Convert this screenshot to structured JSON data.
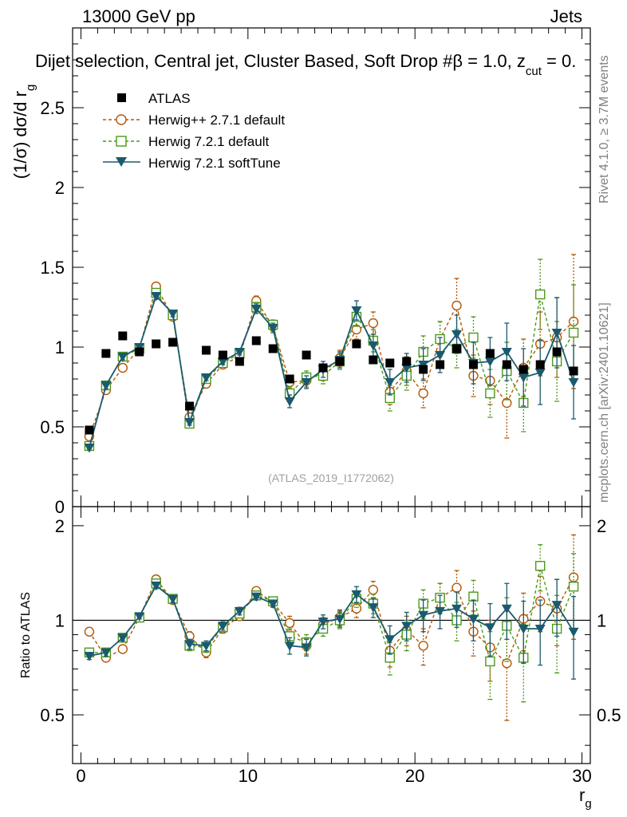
{
  "header": {
    "left": "13000 GeV pp",
    "right": "Jets",
    "selection": "Dijet selection, Central jet, Cluster Based, Soft Drop #β = 1.0, z",
    "selection_sub": "cut",
    "selection_tail": " = 0.",
    "analysis_tag": "(ATLAS_2019_I1772062)",
    "rivet": "Rivet 4.1.0, ≥ 3.7M events",
    "mcplots": "mcplots.cern.ch [arXiv:2401.10621]"
  },
  "colors": {
    "atlas": "#000000",
    "herwigpp": "#b35806",
    "herwig721": "#4a9a1a",
    "softtune": "#1b5a6e"
  },
  "chart_data": [
    {
      "type": "scatter",
      "panel": "main",
      "ylabel_main": "(1/σ) dσ/d r",
      "ylabel_sub": "g",
      "xlim": [
        -0.5,
        30.5
      ],
      "ylim": [
        0,
        3.0
      ],
      "yticks": [
        0,
        0.5,
        1,
        1.5,
        2,
        2.5
      ],
      "ytick_labels": [
        "0",
        "0.5",
        "1",
        "1.5",
        "2",
        "2.5"
      ],
      "legend": [
        "ATLAS",
        "Herwig++ 2.7.1 default",
        "Herwig 7.2.1 default",
        "Herwig 7.2.1 softTune"
      ],
      "x": [
        0.5,
        1.5,
        2.5,
        3.5,
        4.5,
        5.5,
        6.5,
        7.5,
        8.5,
        9.5,
        10.5,
        11.5,
        12.5,
        13.5,
        14.5,
        15.5,
        16.5,
        17.5,
        18.5,
        19.5,
        20.5,
        21.5,
        22.5,
        23.5,
        24.5,
        25.5,
        26.5,
        27.5,
        28.5,
        29.5
      ],
      "series": [
        {
          "name": "ATLAS",
          "values": [
            0.48,
            0.96,
            1.07,
            0.97,
            1.02,
            1.03,
            0.63,
            0.98,
            0.95,
            0.91,
            1.04,
            0.99,
            0.8,
            0.95,
            0.87,
            0.91,
            1.02,
            0.92,
            0.9,
            0.91,
            0.86,
            0.89,
            0.99,
            0.89,
            0.96,
            0.89,
            0.86,
            0.89,
            0.97,
            0.85
          ],
          "errors": [
            0.01,
            0.01,
            0.01,
            0.01,
            0.01,
            0.01,
            0.01,
            0.01,
            0.01,
            0.01,
            0.01,
            0.01,
            0.01,
            0.01,
            0.01,
            0.01,
            0.01,
            0.01,
            0.01,
            0.02,
            0.02,
            0.02,
            0.02,
            0.02,
            0.02,
            0.02,
            0.02,
            0.02,
            0.02,
            0.02
          ]
        },
        {
          "name": "Herwig++ 2.7.1 default",
          "values": [
            0.44,
            0.73,
            0.87,
            0.99,
            1.38,
            1.19,
            0.56,
            0.77,
            0.89,
            0.94,
            1.29,
            1.13,
            0.78,
            0.79,
            0.84,
            0.93,
            1.11,
            1.15,
            0.72,
            0.85,
            0.71,
            1.05,
            1.26,
            0.82,
            0.79,
            0.65,
            0.87,
            1.02,
            1.06,
            1.16
          ],
          "errors": [
            0.01,
            0.02,
            0.02,
            0.02,
            0.02,
            0.02,
            0.02,
            0.02,
            0.02,
            0.02,
            0.03,
            0.03,
            0.04,
            0.04,
            0.05,
            0.05,
            0.06,
            0.07,
            0.08,
            0.09,
            0.09,
            0.11,
            0.17,
            0.13,
            0.15,
            0.22,
            0.18,
            0.2,
            0.25,
            0.42
          ]
        },
        {
          "name": "Herwig 7.2.1 default",
          "values": [
            0.38,
            0.76,
            0.94,
            0.99,
            1.34,
            1.2,
            0.52,
            0.8,
            0.9,
            0.96,
            1.25,
            1.14,
            0.71,
            0.81,
            0.82,
            0.91,
            1.19,
            1.04,
            0.68,
            0.82,
            0.97,
            1.05,
            0.99,
            1.06,
            0.71,
            0.85,
            0.65,
            1.33,
            0.91,
            1.09
          ],
          "errors": [
            0.01,
            0.02,
            0.02,
            0.02,
            0.02,
            0.02,
            0.02,
            0.02,
            0.02,
            0.02,
            0.03,
            0.03,
            0.04,
            0.04,
            0.05,
            0.05,
            0.06,
            0.07,
            0.08,
            0.09,
            0.1,
            0.11,
            0.12,
            0.13,
            0.15,
            0.18,
            0.18,
            0.22,
            0.25,
            0.3
          ]
        },
        {
          "name": "Herwig 7.2.1 softTune",
          "values": [
            0.37,
            0.76,
            0.94,
            1.0,
            1.32,
            1.21,
            0.53,
            0.81,
            0.91,
            0.97,
            1.24,
            1.12,
            0.66,
            0.78,
            0.86,
            0.92,
            1.23,
            1.01,
            0.78,
            0.87,
            0.89,
            0.95,
            1.08,
            0.9,
            0.91,
            0.97,
            0.81,
            0.84,
            1.09,
            0.78
          ],
          "errors": [
            0.01,
            0.02,
            0.02,
            0.02,
            0.02,
            0.02,
            0.02,
            0.02,
            0.02,
            0.02,
            0.03,
            0.03,
            0.04,
            0.04,
            0.05,
            0.05,
            0.06,
            0.07,
            0.08,
            0.09,
            0.1,
            0.11,
            0.12,
            0.13,
            0.15,
            0.18,
            0.18,
            0.2,
            0.22,
            0.23
          ]
        }
      ]
    },
    {
      "type": "scatter",
      "panel": "ratio",
      "ylabel": "Ratio to ATLAS",
      "xlabel": "r",
      "xlabel_sub": "g",
      "xlim": [
        -0.5,
        30.5
      ],
      "ylim": [
        0.35,
        2.3
      ],
      "reference_line": 1,
      "xticks": [
        0,
        10,
        20,
        30
      ],
      "xtick_labels": [
        "0",
        "10",
        "20",
        "30"
      ],
      "yticks": [
        0.5,
        1,
        2
      ],
      "ytick_labels": [
        "0.5",
        "1",
        "2"
      ],
      "x": [
        0.5,
        1.5,
        2.5,
        3.5,
        4.5,
        5.5,
        6.5,
        7.5,
        8.5,
        9.5,
        10.5,
        11.5,
        12.5,
        13.5,
        14.5,
        15.5,
        16.5,
        17.5,
        18.5,
        19.5,
        20.5,
        21.5,
        22.5,
        23.5,
        24.5,
        25.5,
        26.5,
        27.5,
        28.5,
        29.5
      ],
      "series": [
        {
          "name": "Herwig++ 2.7.1 default",
          "values": [
            0.92,
            0.76,
            0.81,
            1.02,
            1.35,
            1.16,
            0.89,
            0.79,
            0.94,
            1.03,
            1.24,
            1.14,
            0.98,
            0.83,
            0.97,
            1.02,
            1.09,
            1.25,
            0.8,
            0.93,
            0.83,
            1.18,
            1.27,
            0.92,
            0.82,
            0.73,
            1.01,
            1.15,
            1.09,
            1.37
          ],
          "errors": [
            0.02,
            0.02,
            0.02,
            0.02,
            0.03,
            0.03,
            0.03,
            0.03,
            0.03,
            0.03,
            0.03,
            0.03,
            0.05,
            0.05,
            0.05,
            0.06,
            0.07,
            0.08,
            0.09,
            0.1,
            0.11,
            0.13,
            0.17,
            0.15,
            0.18,
            0.25,
            0.21,
            0.23,
            0.26,
            0.5
          ]
        },
        {
          "name": "Herwig 7.2.1 default",
          "values": [
            0.79,
            0.79,
            0.88,
            1.02,
            1.31,
            1.17,
            0.83,
            0.82,
            0.95,
            1.05,
            1.2,
            1.15,
            0.89,
            0.85,
            0.94,
            1.0,
            1.17,
            1.13,
            0.76,
            0.9,
            1.13,
            1.18,
            1.0,
            1.19,
            0.74,
            0.96,
            0.76,
            1.49,
            0.94,
            1.28
          ],
          "errors": [
            0.02,
            0.02,
            0.02,
            0.02,
            0.03,
            0.03,
            0.03,
            0.03,
            0.03,
            0.03,
            0.03,
            0.03,
            0.05,
            0.05,
            0.05,
            0.06,
            0.07,
            0.08,
            0.09,
            0.1,
            0.12,
            0.13,
            0.14,
            0.15,
            0.18,
            0.22,
            0.21,
            0.25,
            0.26,
            0.35
          ]
        },
        {
          "name": "Herwig 7.2.1 softTune",
          "values": [
            0.77,
            0.79,
            0.88,
            1.03,
            1.29,
            1.17,
            0.84,
            0.83,
            0.96,
            1.07,
            1.19,
            1.13,
            0.83,
            0.82,
            0.99,
            1.01,
            1.21,
            1.1,
            0.87,
            0.96,
            1.04,
            1.07,
            1.09,
            1.01,
            0.95,
            1.09,
            0.94,
            0.94,
            1.12,
            0.92
          ],
          "errors": [
            0.02,
            0.02,
            0.02,
            0.02,
            0.03,
            0.03,
            0.03,
            0.03,
            0.03,
            0.03,
            0.03,
            0.03,
            0.05,
            0.05,
            0.05,
            0.06,
            0.07,
            0.08,
            0.09,
            0.1,
            0.12,
            0.13,
            0.14,
            0.15,
            0.18,
            0.22,
            0.21,
            0.22,
            0.23,
            0.27
          ]
        }
      ]
    }
  ]
}
